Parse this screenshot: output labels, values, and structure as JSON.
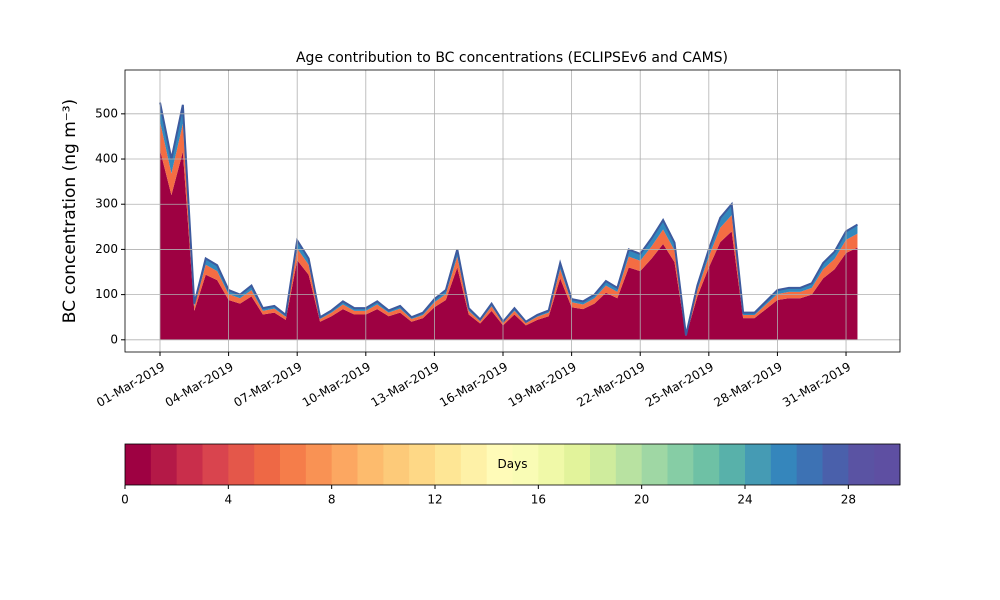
{
  "chart_data": {
    "type": "stacked_area",
    "title": "Age contribution to BC concentrations (ECLIPSEv6 and CAMS)",
    "y_label": "BC concentration (ng m⁻³)",
    "x": [
      0,
      0.5,
      1,
      1.5,
      2,
      2.5,
      3,
      3.5,
      4,
      4.5,
      5,
      5.5,
      6,
      6.5,
      7,
      7.5,
      8,
      8.5,
      9,
      9.5,
      10,
      10.5,
      11,
      11.5,
      12,
      12.5,
      13,
      13.5,
      14,
      14.5,
      15,
      15.5,
      16,
      16.5,
      17,
      17.5,
      18,
      18.5,
      19,
      19.5,
      20,
      20.5,
      21,
      21.5,
      22,
      22.5,
      23,
      23.5,
      24,
      24.5,
      25,
      25.5,
      26,
      26.5,
      27,
      27.5,
      28,
      28.5,
      29,
      29.5,
      30,
      30.5
    ],
    "series": [
      {
        "color": "#9e0142",
        "values": [
          420,
          320,
          416,
          64,
          144,
          132,
          88,
          80,
          96,
          56,
          60,
          44,
          176,
          144,
          40,
          52,
          68,
          56,
          56,
          68,
          52,
          60,
          40,
          48,
          72,
          88,
          160,
          56,
          36,
          64,
          32,
          56,
          32,
          44,
          52,
          136,
          72,
          68,
          80,
          104,
          92,
          160,
          152,
          180,
          212,
          172,
          8,
          96,
          160,
          216,
          240,
          48,
          48,
          68,
          88,
          92,
          92,
          100,
          136,
          156,
          192,
          204
        ]
      },
      {
        "color": "#f46d43",
        "values": [
          63,
          48,
          62,
          10,
          22,
          20,
          13,
          12,
          14,
          8,
          9,
          7,
          26,
          22,
          6,
          8,
          10,
          8,
          8,
          10,
          8,
          9,
          6,
          7,
          11,
          13,
          24,
          8,
          5,
          10,
          5,
          8,
          5,
          7,
          8,
          20,
          11,
          10,
          12,
          16,
          14,
          24,
          23,
          27,
          32,
          26,
          1,
          14,
          24,
          32,
          36,
          7,
          7,
          10,
          13,
          14,
          14,
          15,
          20,
          23,
          29,
          31
        ]
      },
      {
        "color": "#3288bd",
        "values": [
          42,
          32,
          42,
          6,
          14,
          13,
          9,
          8,
          10,
          6,
          6,
          4,
          18,
          14,
          4,
          5,
          7,
          6,
          6,
          7,
          5,
          6,
          4,
          5,
          7,
          9,
          16,
          6,
          4,
          6,
          3,
          6,
          3,
          4,
          5,
          14,
          7,
          7,
          8,
          10,
          9,
          16,
          15,
          18,
          21,
          17,
          1,
          10,
          16,
          22,
          24,
          5,
          5,
          7,
          9,
          9,
          9,
          10,
          14,
          16,
          19,
          20
        ]
      }
    ],
    "line_color": "#3d5a9e",
    "xlim": [
      -1.53,
      32.36
    ],
    "xticks": [
      {
        "value": 0,
        "label": "01-Mar-2019"
      },
      {
        "value": 3,
        "label": "04-Mar-2019"
      },
      {
        "value": 6,
        "label": "07-Mar-2019"
      },
      {
        "value": 9,
        "label": "10-Mar-2019"
      },
      {
        "value": 12,
        "label": "13-Mar-2019"
      },
      {
        "value": 15,
        "label": "16-Mar-2019"
      },
      {
        "value": 18,
        "label": "19-Mar-2019"
      },
      {
        "value": 21,
        "label": "22-Mar-2019"
      },
      {
        "value": 24,
        "label": "25-Mar-2019"
      },
      {
        "value": 27,
        "label": "28-Mar-2019"
      },
      {
        "value": 30,
        "label": "31-Mar-2019"
      }
    ],
    "ylim": [
      -27,
      597
    ],
    "yticks": [
      0,
      100,
      200,
      300,
      400,
      500
    ],
    "grid": true,
    "colorbar": {
      "label": "Days",
      "lim": [
        0,
        30
      ],
      "ticks": [
        0,
        4,
        8,
        12,
        16,
        20,
        24,
        28
      ],
      "colors": [
        "#9e0142",
        "#b41947",
        "#c92e4b",
        "#d9444e",
        "#e4574a",
        "#ee6845",
        "#f57d4a",
        "#f99254",
        "#fca761",
        "#fdbb6d",
        "#fdca79",
        "#fed886",
        "#fee695",
        "#fef1a7",
        "#fffbb8",
        "#f9fcb5",
        "#f0f9a8",
        "#e2f39b",
        "#cfec9d",
        "#b8e2a1",
        "#9fd7a4",
        "#86cda5",
        "#6ec1a5",
        "#58b1aa",
        "#459bb4",
        "#3586bc",
        "#3d72b4",
        "#4a60ab",
        "#5a53a3",
        "#5e4fa2"
      ]
    }
  }
}
